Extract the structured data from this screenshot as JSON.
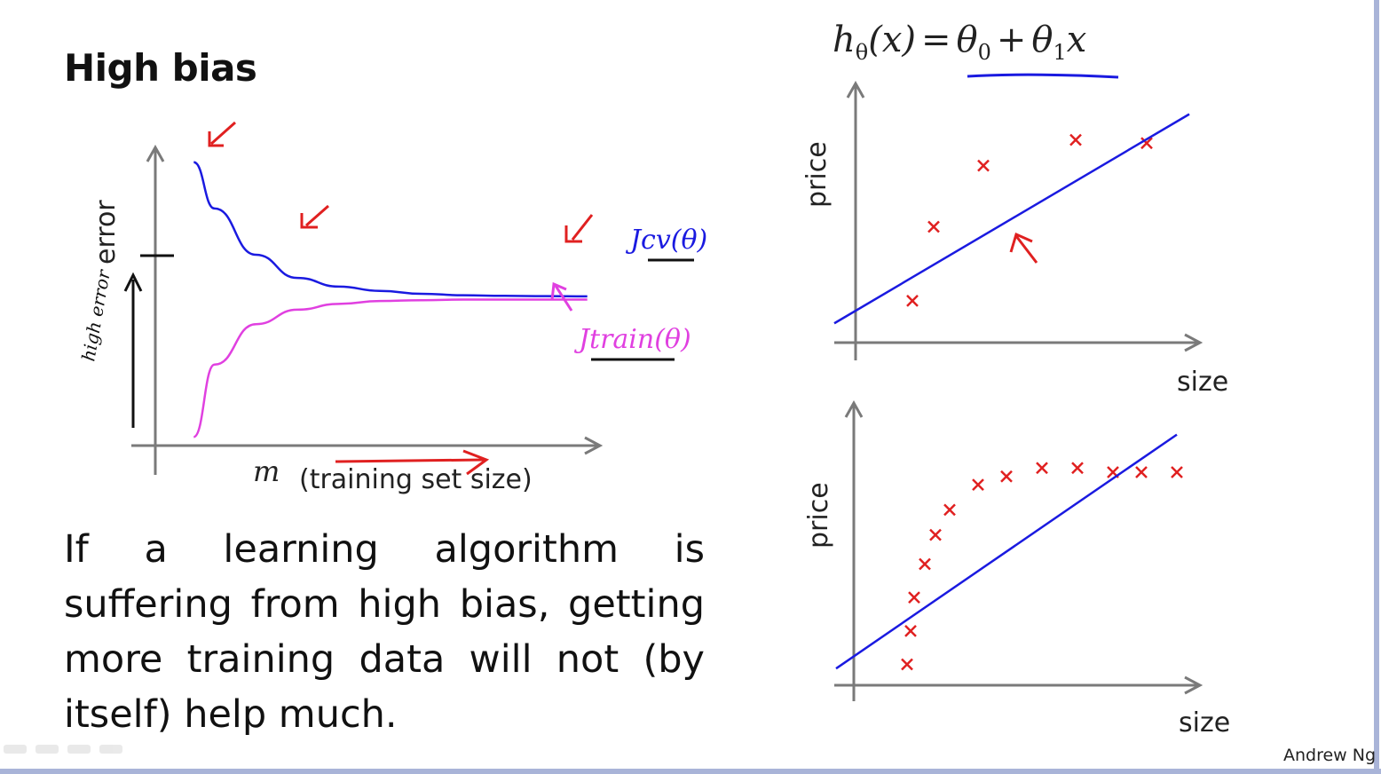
{
  "slide": {
    "title": "High bias",
    "body": "If a learning algorithm is suffering from high bias, getting more training data will not (by itself) help much.",
    "author": "Andrew Ng",
    "formula": {
      "h": "h",
      "theta_sub": "θ",
      "x": "(x)",
      "eq": "=",
      "theta0": "θ",
      "sub0": "0",
      "plus": "+",
      "theta1": "θ",
      "sub1": "1",
      "x2": "x"
    },
    "colors": {
      "blue": "#1a1ae0",
      "magenta": "#e040e0",
      "red": "#e02020",
      "axis": "#7a7a7a"
    }
  },
  "chart_data": [
    {
      "type": "line",
      "ylabel": "error",
      "xlabel_symbol": "m",
      "xlabel": "(training set size)",
      "annotation_left": "high error",
      "x": [
        1,
        2,
        4,
        6,
        8,
        10,
        12,
        14,
        16,
        18,
        20
      ],
      "series": [
        {
          "name": "Jcv(θ)",
          "color": "#1a1ae0",
          "values": [
            0.98,
            0.82,
            0.66,
            0.58,
            0.55,
            0.535,
            0.525,
            0.52,
            0.518,
            0.517,
            0.516
          ]
        },
        {
          "name": "Jtrain(θ)",
          "color": "#e040e0",
          "values": [
            0.03,
            0.28,
            0.42,
            0.47,
            0.49,
            0.5,
            0.503,
            0.505,
            0.505,
            0.505,
            0.505
          ]
        }
      ],
      "ylim": [
        0,
        1.05
      ],
      "xlim": [
        0,
        21
      ],
      "annotations": [
        "Jcv(θ)",
        "Jtrain(θ)",
        "high error"
      ]
    },
    {
      "type": "scatter",
      "xlabel": "size",
      "ylabel": "price",
      "points": [
        [
          1.2,
          1.3
        ],
        [
          1.8,
          3.6
        ],
        [
          3.2,
          5.5
        ],
        [
          5.8,
          6.3
        ],
        [
          7.8,
          6.2
        ]
      ],
      "fit_line": {
        "x": [
          -1,
          9
        ],
        "y": [
          0.6,
          7.1
        ]
      },
      "xlim": [
        -1,
        10
      ],
      "ylim": [
        0,
        8
      ]
    },
    {
      "type": "scatter",
      "xlabel": "size",
      "ylabel": "price",
      "points": [
        [
          1.0,
          0.5
        ],
        [
          1.1,
          1.3
        ],
        [
          1.2,
          2.1
        ],
        [
          1.5,
          2.9
        ],
        [
          1.8,
          3.6
        ],
        [
          2.2,
          4.2
        ],
        [
          3.0,
          4.8
        ],
        [
          3.8,
          5.0
        ],
        [
          4.8,
          5.2
        ],
        [
          5.8,
          5.2
        ],
        [
          6.8,
          5.1
        ],
        [
          7.6,
          5.1
        ],
        [
          8.6,
          5.1
        ]
      ],
      "fit_line": {
        "x": [
          -1,
          8.6
        ],
        "y": [
          0.4,
          6.0
        ]
      },
      "xlim": [
        -1,
        10
      ],
      "ylim": [
        0,
        6.8
      ]
    }
  ]
}
